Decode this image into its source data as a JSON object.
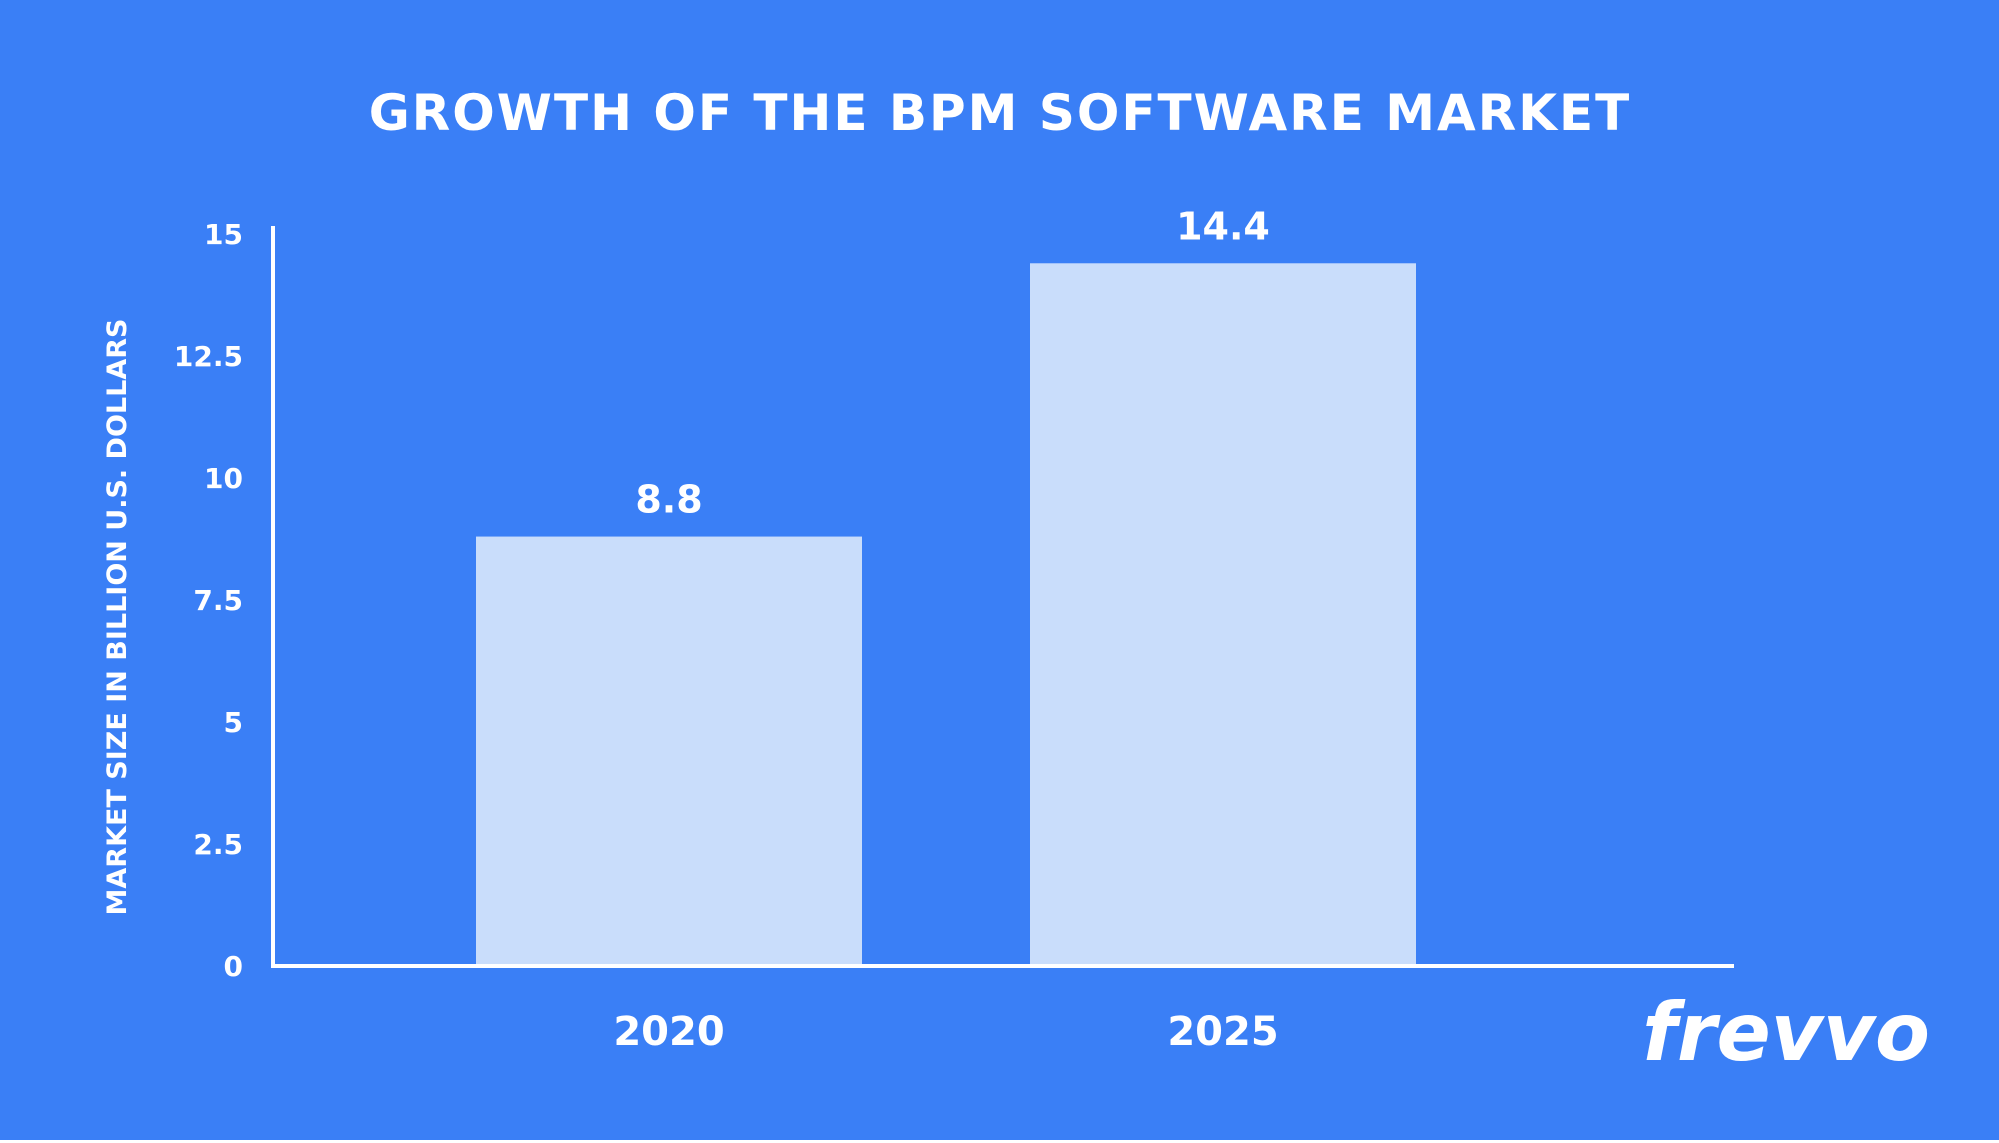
{
  "colors": {
    "background": "#3a7ff6",
    "bar": "#c9ddfb",
    "axis": "#ffffff",
    "text": "#ffffff"
  },
  "brand": {
    "logo_text": "frevvo"
  },
  "chart_data": {
    "type": "bar",
    "title": "GROWTH OF THE BPM SOFTWARE MARKET",
    "xlabel": "",
    "ylabel": "MARKET SIZE IN BILLION U.S. DOLLARS",
    "categories": [
      "2020",
      "2025"
    ],
    "values": [
      8.8,
      14.4
    ],
    "data_labels": [
      "8.8",
      "14.4"
    ],
    "ylim": [
      0,
      15
    ],
    "yticks": [
      0,
      2.5,
      5,
      7.5,
      10,
      12.5,
      15
    ],
    "ytick_labels": [
      "0",
      "2.5",
      "5",
      "7.5",
      "10",
      "12.5",
      "15"
    ],
    "grid": false,
    "legend": "none"
  }
}
